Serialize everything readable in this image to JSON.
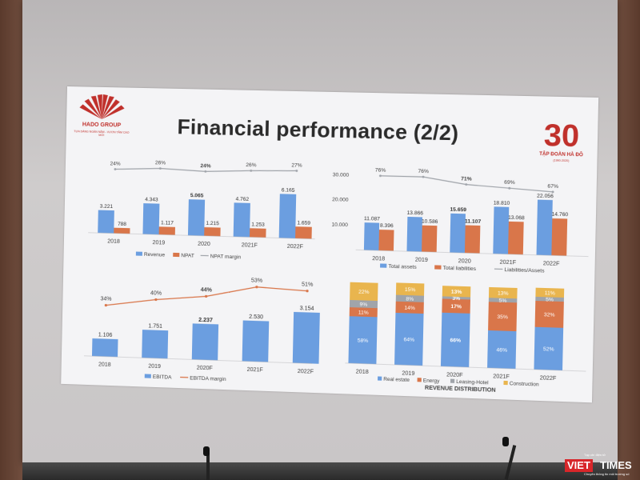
{
  "slide": {
    "title": "Financial performance (2/2)",
    "logo": {
      "name": "HADO GROUP",
      "tagline": "TỰA DÁNG NGÀN NĂM - VƯƠN TẦM CAO MỚI"
    },
    "badge": {
      "number": "30",
      "subtitle": "TẬP ĐOÀN HÀ ĐÔ",
      "years": "(1990-2020)"
    }
  },
  "watermark": {
    "brand_red": "VIET",
    "brand": "TIMES",
    "top_line": "Tạp chí điện tử",
    "bottom_line": "Chuyên thông tin môi trường số"
  },
  "colors": {
    "blue": "#6b9ee0",
    "orange": "#d9764a",
    "gray": "#a0a4aa",
    "gold": "#e9b54e",
    "axis": "#b8b8bc"
  },
  "chart_data": [
    {
      "type": "bar",
      "categories": [
        "2018",
        "2019",
        "2020",
        "2021F",
        "2022F"
      ],
      "series": [
        {
          "name": "Revenue",
          "values": [
            3221,
            4343,
            5065,
            4762,
            6165
          ],
          "labels": [
            "3.221",
            "4.343",
            "5.065",
            "4.762",
            "6.165"
          ]
        },
        {
          "name": "NPAT",
          "values": [
            788,
            1117,
            1215,
            1253,
            1659
          ],
          "labels": [
            "788",
            "1.117",
            "1.215",
            "1.253",
            "1.659"
          ]
        }
      ],
      "line": {
        "name": "NPAT margin",
        "values": [
          24,
          26,
          24,
          26,
          27
        ],
        "labels": [
          "24%",
          "26%",
          "24%",
          "26%",
          "27%"
        ]
      },
      "legend": "bottom"
    },
    {
      "type": "bar",
      "categories": [
        "2018",
        "2019",
        "2020",
        "2021F",
        "2022F"
      ],
      "yticks": [
        "30.000",
        "20.000",
        "10.000"
      ],
      "ylim": [
        0,
        30000
      ],
      "series": [
        {
          "name": "Total assets",
          "values": [
            11087,
            13866,
            15659,
            18810,
            22056
          ],
          "labels": [
            "11.087",
            "13.866",
            "15.659",
            "18.810",
            "22.056"
          ]
        },
        {
          "name": "Total liabilities",
          "values": [
            8396,
            10586,
            11107,
            13068,
            14760
          ],
          "labels": [
            "8.396",
            "10.586",
            "11.107",
            "13.068",
            "14.760"
          ]
        }
      ],
      "line": {
        "name": "Liabilities/Assets",
        "values": [
          76,
          76,
          71,
          69,
          67
        ],
        "labels": [
          "76%",
          "76%",
          "71%",
          "69%",
          "67%"
        ]
      },
      "legend": "bottom"
    },
    {
      "type": "bar",
      "categories": [
        "2018",
        "2019",
        "2020F",
        "2021F",
        "2022F"
      ],
      "series": [
        {
          "name": "EBITDA",
          "values": [
            1106,
            1751,
            2237,
            2530,
            3154
          ],
          "labels": [
            "1.106",
            "1.751",
            "2.237",
            "2.530",
            "3.154"
          ]
        }
      ],
      "line": {
        "name": "EBITDA margin",
        "values": [
          34,
          40,
          44,
          53,
          51
        ],
        "labels": [
          "34%",
          "40%",
          "44%",
          "53%",
          "51%"
        ]
      },
      "legend": "bottom"
    },
    {
      "type": "bar",
      "stacked": true,
      "title": "REVENUE DISTRIBUTION",
      "categories": [
        "2018",
        "2019",
        "2020F",
        "2021F",
        "2022F"
      ],
      "series": [
        {
          "name": "Real estate",
          "values": [
            58,
            64,
            66,
            46,
            52
          ],
          "labels": [
            "58%",
            "64%",
            "66%",
            "46%",
            "52%"
          ]
        },
        {
          "name": "Energy",
          "values": [
            11,
            14,
            17,
            35,
            32
          ],
          "labels": [
            "11%",
            "14%",
            "17%",
            "35%",
            "32%"
          ]
        },
        {
          "name": "Leasing-Hotel",
          "values": [
            9,
            8,
            3,
            5,
            5
          ],
          "labels": [
            "9%",
            "8%",
            "3%",
            "5%",
            "5%"
          ]
        },
        {
          "name": "Construction",
          "values": [
            22,
            15,
            13,
            13,
            11
          ],
          "labels": [
            "22%",
            "15%",
            "13%",
            "13%",
            "11%"
          ]
        }
      ],
      "legend": "bottom"
    }
  ]
}
